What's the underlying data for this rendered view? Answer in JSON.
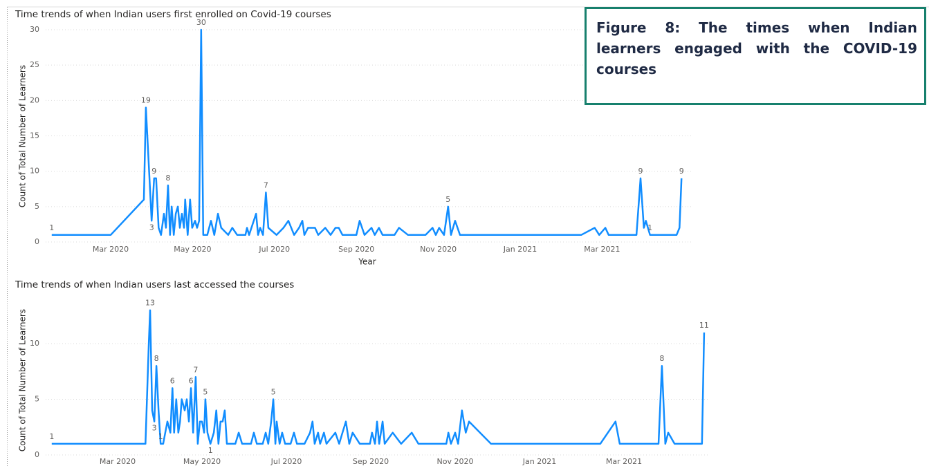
{
  "caption": "Figure 8: The times when Indian learners engaged with the COVID-19 courses",
  "chart_data": [
    {
      "type": "line",
      "title": "Time trends of when Indian users first enrolled on Covid-19 courses",
      "x_label": "Year",
      "y_label": "Count of Total Number of Learners",
      "color": "#118dff",
      "xlim": [
        0.5,
        16
      ],
      "xticks": [
        {
          "value": 2,
          "label": "Mar 2020"
        },
        {
          "value": 4,
          "label": "May 2020"
        },
        {
          "value": 6,
          "label": "Jul 2020"
        },
        {
          "value": 8,
          "label": "Sep 2020"
        },
        {
          "value": 10,
          "label": "Nov 2020"
        },
        {
          "value": 12,
          "label": "Jan 2021"
        },
        {
          "value": 14,
          "label": "Mar 2021"
        }
      ],
      "ylim": [
        0,
        30
      ],
      "yticks": [
        0,
        5,
        10,
        15,
        20,
        25,
        30
      ],
      "grid": true,
      "x": [
        0.56,
        2,
        2.81,
        2.86,
        3.0,
        3.06,
        3.11,
        3.17,
        3.23,
        3.3,
        3.35,
        3.4,
        3.45,
        3.49,
        3.54,
        3.59,
        3.64,
        3.69,
        3.74,
        3.79,
        3.82,
        3.88,
        3.94,
        3.99,
        4.06,
        4.11,
        4.16,
        4.21,
        4.26,
        4.36,
        4.45,
        4.53,
        4.62,
        4.7,
        4.87,
        4.97,
        5.09,
        5.29,
        5.33,
        5.38,
        5.55,
        5.6,
        5.65,
        5.72,
        5.79,
        5.85,
        6.05,
        6.22,
        6.34,
        6.48,
        6.6,
        6.68,
        6.73,
        6.82,
        6.99,
        7.07,
        7.24,
        7.37,
        7.49,
        7.57,
        7.66,
        8.0,
        8.08,
        8.2,
        8.37,
        8.45,
        8.55,
        8.64,
        8.93,
        9.04,
        9.26,
        9.69,
        9.86,
        9.94,
        10.02,
        10.14,
        10.24,
        10.31,
        10.41,
        10.53,
        13.49,
        13.82,
        13.93,
        14.08,
        14.16,
        14.84,
        14.94,
        15.02,
        15.07,
        15.17,
        15.82,
        15.89,
        15.94
      ],
      "values": [
        1,
        1,
        6,
        19,
        3,
        9,
        9,
        2,
        1,
        4,
        2,
        8,
        1,
        5,
        1,
        4,
        5,
        2,
        4,
        2,
        6,
        1,
        6,
        2,
        3,
        2,
        3,
        30,
        1,
        1,
        3,
        1,
        4,
        2,
        1,
        2,
        1,
        1,
        2,
        1,
        4,
        1,
        2,
        1,
        7,
        2,
        1,
        2,
        3,
        1,
        2,
        3,
        1,
        2,
        2,
        1,
        2,
        1,
        2,
        2,
        1,
        1,
        3,
        1,
        2,
        1,
        2,
        1,
        1,
        2,
        1,
        1,
        2,
        1,
        2,
        1,
        5,
        1,
        3,
        1,
        1,
        2,
        1,
        2,
        1,
        1,
        9,
        2,
        3,
        1,
        1,
        2,
        9
      ],
      "label_points": [
        0,
        3,
        4,
        5,
        11,
        27,
        44,
        76,
        86,
        89,
        92
      ]
    },
    {
      "type": "line",
      "title": "Time trends of when Indian users last accessed the courses",
      "y_label": "Count of Total Number of Learners",
      "color": "#118dff",
      "xlim": [
        0.4,
        16
      ],
      "xticks": [
        {
          "value": 2,
          "label": "Mar 2020"
        },
        {
          "value": 4,
          "label": "May 2020"
        },
        {
          "value": 6,
          "label": "Jul 2020"
        },
        {
          "value": 8,
          "label": "Sep 2020"
        },
        {
          "value": 10,
          "label": "Nov 2020"
        },
        {
          "value": 12,
          "label": "Jan 2021"
        },
        {
          "value": 14,
          "label": "Mar 2021"
        }
      ],
      "ylim": [
        0,
        13.5
      ],
      "yticks": [
        0,
        5,
        10
      ],
      "grid": true,
      "x": [
        0.44,
        2.66,
        2.74,
        2.77,
        2.82,
        2.87,
        2.92,
        2.97,
        3.02,
        3.08,
        3.13,
        3.18,
        3.25,
        3.3,
        3.34,
        3.39,
        3.44,
        3.48,
        3.52,
        3.59,
        3.64,
        3.69,
        3.74,
        3.79,
        3.85,
        3.9,
        3.95,
        4.0,
        4.05,
        4.08,
        4.13,
        4.2,
        4.28,
        4.34,
        4.39,
        4.44,
        4.49,
        4.54,
        4.59,
        4.79,
        4.87,
        4.95,
        5.16,
        5.23,
        5.3,
        5.44,
        5.51,
        5.57,
        5.64,
        5.69,
        5.74,
        5.77,
        5.84,
        5.9,
        5.97,
        6.1,
        6.18,
        6.25,
        6.43,
        6.56,
        6.62,
        6.67,
        6.75,
        6.8,
        6.89,
        6.95,
        7.16,
        7.25,
        7.33,
        7.41,
        7.49,
        7.57,
        7.74,
        7.98,
        8.03,
        8.1,
        8.15,
        8.2,
        8.28,
        8.33,
        8.52,
        8.72,
        8.97,
        9.13,
        9.79,
        9.84,
        9.9,
        10.0,
        10.07,
        10.16,
        10.25,
        10.33,
        10.85,
        13.44,
        13.8,
        13.9,
        14.82,
        14.9,
        14.98,
        15.05,
        15.2,
        15.85,
        15.9
      ],
      "values": [
        1,
        1,
        10,
        13,
        4,
        3,
        8,
        4,
        1,
        1,
        2,
        3,
        2,
        6,
        2,
        5,
        2,
        3,
        5,
        4,
        5,
        3,
        6,
        2,
        7,
        1,
        3,
        3,
        2,
        5,
        2,
        1,
        2,
        4,
        1,
        3,
        3,
        4,
        1,
        1,
        2,
        1,
        1,
        2,
        1,
        1,
        2,
        1,
        3,
        5,
        1,
        3,
        1,
        2,
        1,
        1,
        2,
        1,
        1,
        2,
        3,
        1,
        2,
        1,
        2,
        1,
        2,
        1,
        2,
        3,
        1,
        2,
        1,
        1,
        2,
        1,
        3,
        1,
        3,
        1,
        2,
        1,
        2,
        1,
        1,
        2,
        1,
        2,
        1,
        4,
        2,
        3,
        1,
        1,
        3,
        1,
        1,
        8,
        1,
        2,
        1,
        1,
        11
      ],
      "label_points": [
        0,
        3,
        5,
        6,
        8,
        13,
        22,
        24,
        29,
        31,
        49,
        97,
        102
      ]
    }
  ]
}
